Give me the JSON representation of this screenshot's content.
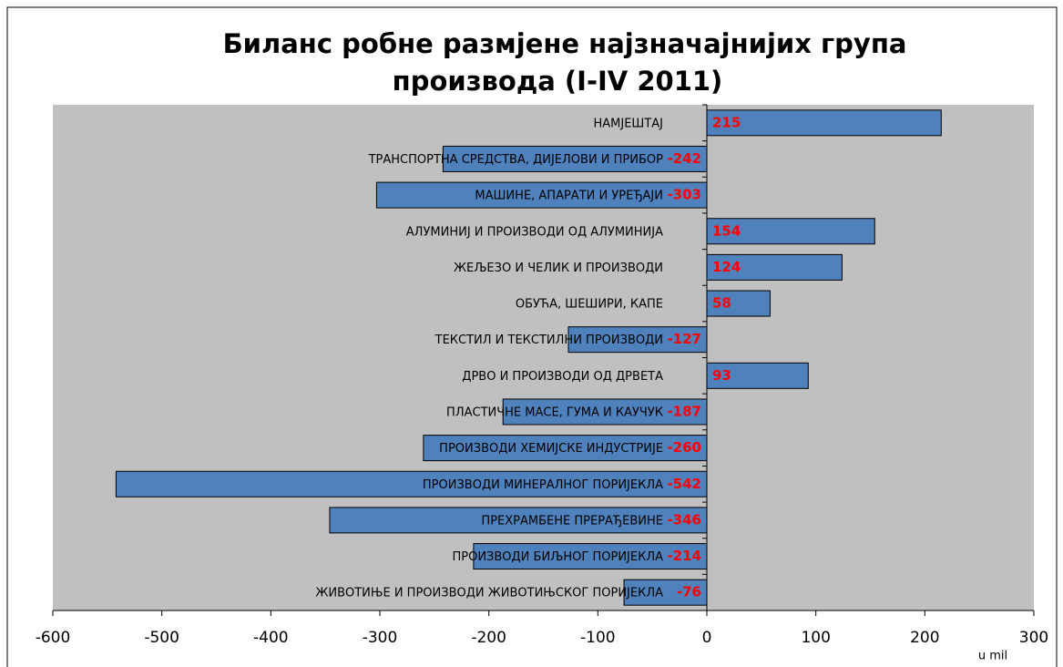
{
  "chart_data": {
    "type": "bar",
    "orientation": "horizontal",
    "title": [
      "Биланс робне размјене најзначајнијих група",
      "производа (I-IV 2011)"
    ],
    "x_axis_label": "u mil",
    "categories": [
      "НАМЈЕШТАЈ",
      "ТРАНСПОРТНА СРЕДСТВА, ДИЈЕЛОВИ И ПРИБОР",
      "МАШИНЕ, АПАРАТИ И УРЕЂАЈИ",
      "АЛУМИНИЈ И ПРОИЗВОДИ ОД АЛУМИНИЈА",
      "ЖЕЉЕЗО И ЧЕЛИК И ПРОИЗВОДИ",
      "ОБУЋА, ШЕШИРИ, КАПЕ",
      "ТЕКСТИЛ И ТЕКСТИЛНИ ПРОИЗВОДИ",
      "ДРВО И ПРОИЗВОДИ ОД ДРВЕТА",
      "ПЛАСТИЧНЕ МАСЕ, ГУМА И КАУЧУК",
      "ПРОИЗВОДИ ХЕМИЈСКЕ ИНДУСТРИЈЕ",
      "ПРОИЗВОДИ МИНЕРАЛНОГ ПОРИЈЕКЛА",
      "ПРЕХРАМБЕНЕ ПРЕРАЂЕВИНЕ",
      "ПРОИЗВОДИ БИЉНОГ ПОРИЈЕКЛА",
      "ЖИВОТИЊЕ И ПРОИЗВОДИ ЖИВОТИЊСКОГ ПОРИЈЕКЛА"
    ],
    "values": [
      215,
      -242,
      -303,
      154,
      124,
      58,
      -127,
      93,
      -187,
      -260,
      -542,
      -346,
      -214,
      -76
    ],
    "color": "#4f81bd",
    "plot_background": "#c0c0c0",
    "xlim": [
      -600,
      300
    ],
    "xticks": [
      -600,
      -500,
      -400,
      -300,
      -200,
      -100,
      0,
      100,
      200,
      300
    ],
    "grid": false
  }
}
